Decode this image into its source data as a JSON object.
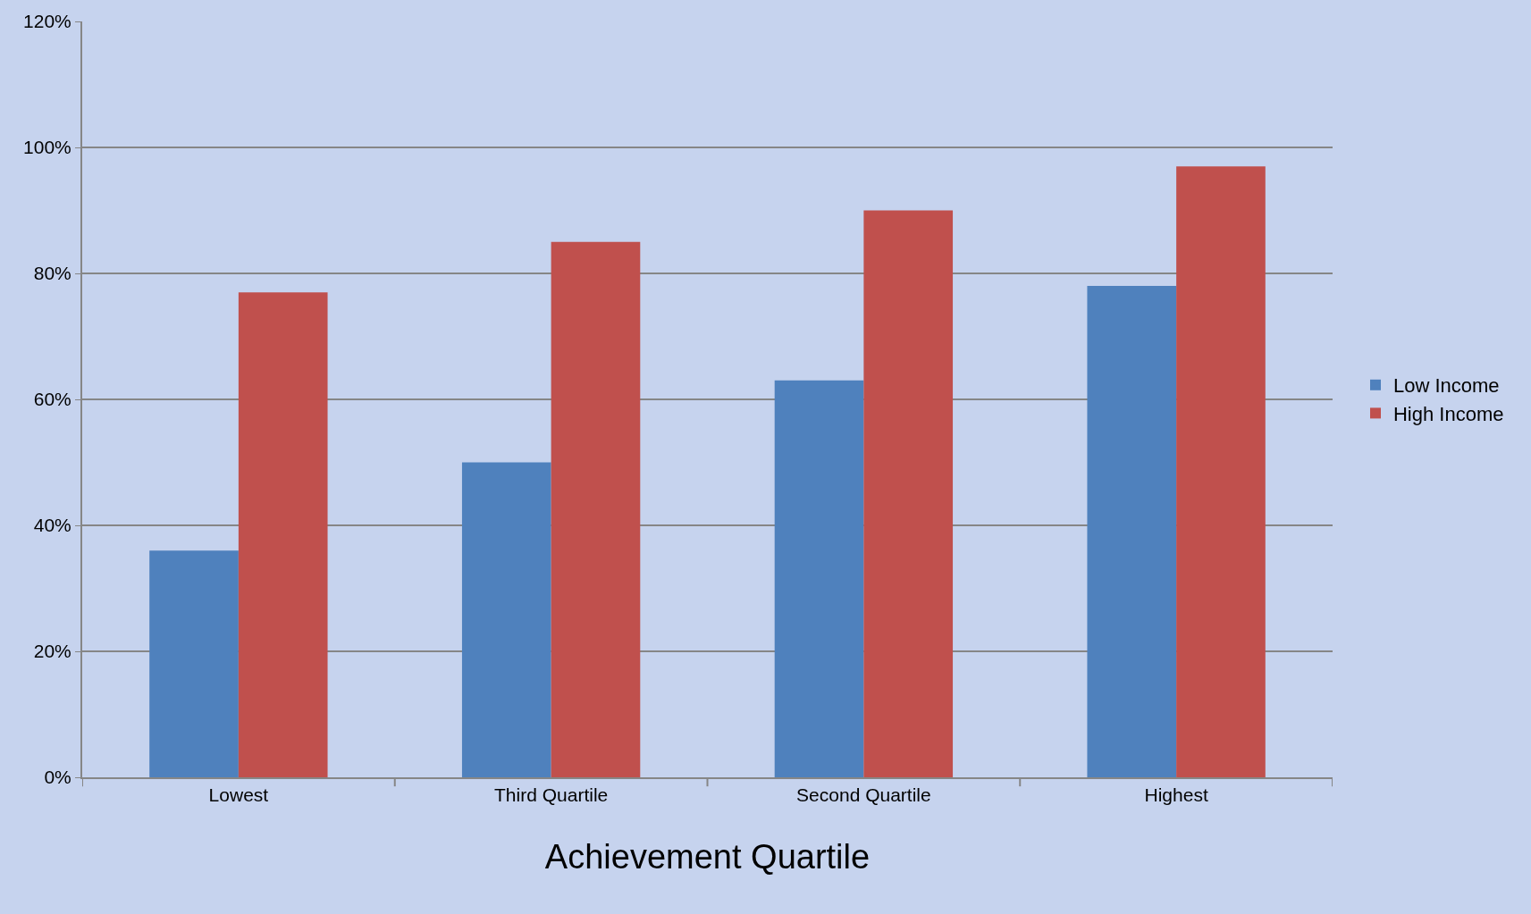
{
  "chart_data": {
    "type": "bar",
    "xlabel": "Achievement Quartile",
    "categories": [
      "Lowest",
      "Third Quartile",
      "Second Quartile",
      "Highest"
    ],
    "series": [
      {
        "name": "Low Income",
        "color": "#4f81bd",
        "values": [
          36,
          50,
          63,
          78
        ]
      },
      {
        "name": "High Income",
        "color": "#c0504d",
        "values": [
          77,
          85,
          90,
          97
        ]
      }
    ],
    "ylim": [
      0,
      120
    ],
    "yticks": [
      {
        "value": 0,
        "label": "0%"
      },
      {
        "value": 20,
        "label": "20%"
      },
      {
        "value": 40,
        "label": "40%"
      },
      {
        "value": 60,
        "label": "60%"
      },
      {
        "value": 80,
        "label": "80%"
      },
      {
        "value": 100,
        "label": "100%"
      },
      {
        "value": 120,
        "label": "120%"
      }
    ],
    "grid": "y",
    "legend": "right"
  }
}
